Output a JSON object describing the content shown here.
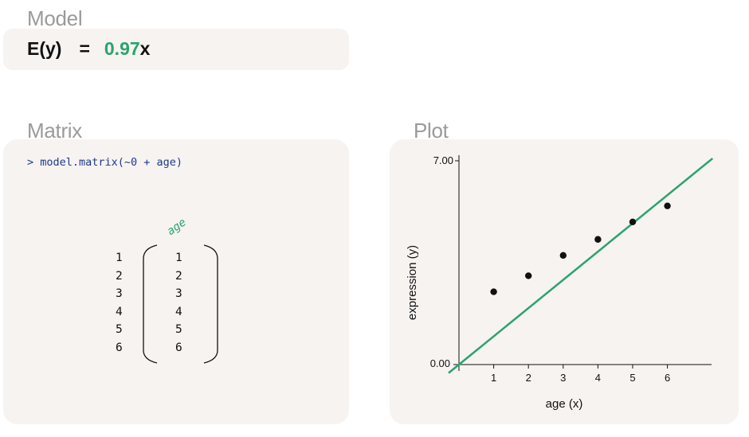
{
  "model": {
    "title": "Model",
    "lhs": "E(y)",
    "equals": "=",
    "coefficient": "0.97",
    "variable": "x"
  },
  "matrix": {
    "title": "Matrix",
    "code": "> model.matrix(~0 + age)",
    "column_header": "age",
    "row_labels": [
      "1",
      "2",
      "3",
      "4",
      "5",
      "6"
    ],
    "values": [
      "1",
      "2",
      "3",
      "4",
      "5",
      "6"
    ]
  },
  "plot": {
    "title": "Plot",
    "xlabel": "age (x)",
    "ylabel": "expression (y)",
    "y_tick_labels": [
      "7.00",
      "0.00"
    ],
    "x_tick_labels": [
      "1",
      "2",
      "3",
      "4",
      "5",
      "6"
    ]
  },
  "colors": {
    "accent": "#2ba36c",
    "code": "#1c3a8c",
    "panel": "#f6f3f1",
    "title": "#9a9a9a"
  },
  "chart_data": {
    "type": "scatter",
    "xlabel": "age (x)",
    "ylabel": "expression (y)",
    "ylim": [
      0,
      7
    ],
    "xlim": [
      0,
      7.3
    ],
    "points": [
      {
        "x": 1,
        "y": 2.5
      },
      {
        "x": 2,
        "y": 3.05
      },
      {
        "x": 3,
        "y": 3.75
      },
      {
        "x": 4,
        "y": 4.3
      },
      {
        "x": 5,
        "y": 4.9
      },
      {
        "x": 6,
        "y": 5.45
      }
    ],
    "fit_line": {
      "intercept": 0,
      "slope": 0.97,
      "color": "#2ba36c"
    }
  }
}
